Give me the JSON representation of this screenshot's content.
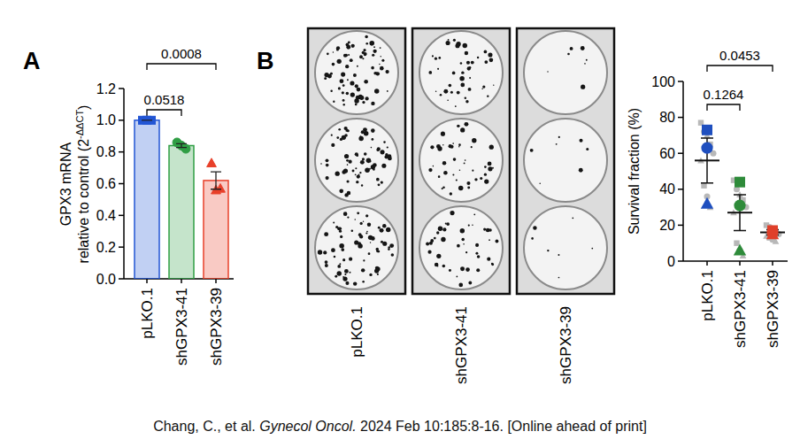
{
  "chart_data": [
    {
      "type": "bar",
      "title": "A",
      "y_label": "GPX3 mRNA",
      "y_label_2": [
        "relative to control (2",
        "-ΔΔCT",
        ")"
      ],
      "categories": [
        "pLKO.1",
        "shGPX3-41",
        "shGPX3-39"
      ],
      "values": [
        1.0,
        0.84,
        0.62
      ],
      "errors": [
        0,
        0.012,
        0.055
      ],
      "replicates": [
        [
          1.0,
          1.0,
          1.0
        ],
        [
          0.86,
          0.84,
          0.82
        ],
        [
          0.73,
          0.56,
          0.57
        ]
      ],
      "colors": [
        "#2255d4",
        "#2f9e44",
        "#e8402a"
      ],
      "ylim": [
        0,
        1.2
      ],
      "yticks": [
        {
          "value": 0,
          "label": "0.0"
        },
        {
          "value": 0.2,
          "label": "0.2"
        },
        {
          "value": 0.4,
          "label": "0.4"
        },
        {
          "value": 0.6,
          "label": "0.6"
        },
        {
          "value": 0.8,
          "label": "0.8"
        },
        {
          "value": 1.0,
          "label": "1.0"
        },
        {
          "value": 1.2,
          "label": "1.2"
        }
      ],
      "comparisons": [
        {
          "groups": [
            "pLKO.1",
            "shGPX3-41"
          ],
          "p": 0.0518
        },
        {
          "groups": [
            "pLKO.1",
            "shGPX3-39"
          ],
          "p": 0.0008
        }
      ]
    },
    {
      "type": "scatter",
      "title": "B",
      "y_label": "Survival fraction (%)",
      "categories": [
        "pLKO.1",
        "shGPX3-41",
        "shGPX3-39"
      ],
      "means": [
        56,
        27,
        16
      ],
      "errors": [
        12.5,
        10,
        1.5
      ],
      "replicate_means": [
        [
          73,
          63,
          32
        ],
        [
          44,
          31,
          6
        ],
        [
          17,
          16,
          15
        ]
      ],
      "technical_replicates": [
        [
          77,
          72,
          70,
          65,
          60,
          56,
          42,
          36,
          30
        ],
        [
          45,
          40,
          37,
          34,
          30,
          27,
          10,
          6,
          3
        ],
        [
          20,
          19,
          18,
          16,
          15,
          14,
          13,
          12,
          11
        ]
      ],
      "colors": [
        "#1f4fbf",
        "#2e8b3a",
        "#e0402a"
      ],
      "ylim": [
        0,
        100
      ],
      "yticks": [
        0,
        20,
        40,
        60,
        80,
        100
      ],
      "comparisons": [
        {
          "groups": [
            "pLKO.1",
            "shGPX3-41"
          ],
          "p": 0.1264
        },
        {
          "groups": [
            "pLKO.1",
            "shGPX3-39"
          ],
          "p": 0.0453
        }
      ]
    }
  ],
  "plates": {
    "labels": [
      "pLKO.1",
      "shGPX3-41",
      "shGPX3-39"
    ]
  },
  "caption": [
    "Chang, C., et al. ",
    "Gynecol Oncol.",
    " 2024 Feb 10:185:8-16. [Online ahead of print]"
  ]
}
